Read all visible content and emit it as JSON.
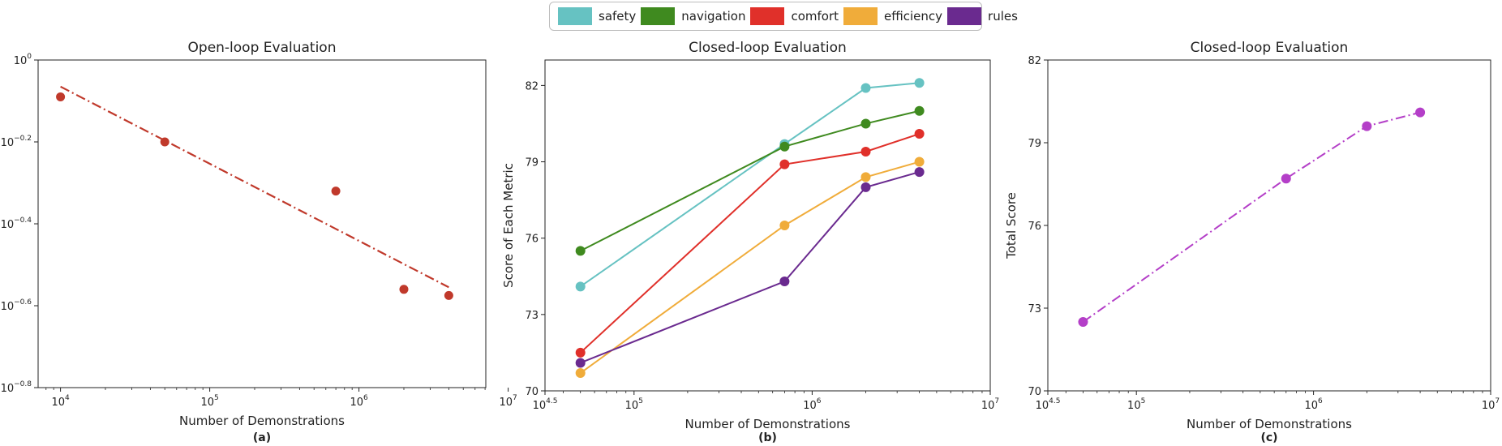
{
  "legend": [
    {
      "label": "safety",
      "color": "#66c2c2"
    },
    {
      "label": "navigation",
      "color": "#3f8a1f"
    },
    {
      "label": "comfort",
      "color": "#e0302a"
    },
    {
      "label": "efficiency",
      "color": "#f0ac3a"
    },
    {
      "label": "rules",
      "color": "#6a2a8f"
    }
  ],
  "chart_data": [
    {
      "type": "scatter",
      "title": "Open-loop Evaluation",
      "xlabel": "Number of Demonstrations",
      "ylabel": "",
      "caption": "(a)",
      "xscale": "log",
      "yscale": "log",
      "xlim_log10": [
        3.85,
        6.85
      ],
      "ylim_log10": [
        -0.8,
        0.0
      ],
      "x_ticks": [
        {
          "base": "10",
          "exp": "4"
        },
        {
          "base": "10",
          "exp": "5"
        },
        {
          "base": "10",
          "exp": "6"
        },
        {
          "base": "10",
          "exp": "7"
        }
      ],
      "y_ticks": [
        {
          "base": "10",
          "exp": "0"
        },
        {
          "base": "10",
          "exp": "−0.2"
        },
        {
          "base": "10",
          "exp": "−0.4"
        },
        {
          "base": "10",
          "exp": "−0.6"
        },
        {
          "base": "10",
          "exp": "−0.8"
        }
      ],
      "points": [
        {
          "x": 10000,
          "y_log10": -0.09
        },
        {
          "x": 50000,
          "y_log10": -0.2
        },
        {
          "x": 700000,
          "y_log10": -0.32
        },
        {
          "x": 2000000,
          "y_log10": -0.56
        },
        {
          "x": 4000000,
          "y_log10": -0.575
        }
      ],
      "trend_line": {
        "from": {
          "x": 10000,
          "y_log10": -0.065
        },
        "to": {
          "x": 4000000,
          "y_log10": -0.555
        }
      },
      "color": "#c0392b"
    },
    {
      "type": "line",
      "title": "Closed-loop Evaluation",
      "xlabel": "Number of Demonstrations",
      "ylabel": "Score of Each Metric",
      "caption": "(b)",
      "xscale": "log",
      "xlim_log10": [
        4.5,
        7.0
      ],
      "ylim": [
        70,
        83
      ],
      "x_ticks": [
        {
          "base": "10",
          "exp": "4.5"
        },
        {
          "base": "10",
          "exp": "5"
        },
        {
          "base": "10",
          "exp": "6"
        },
        {
          "base": "10",
          "exp": "7"
        }
      ],
      "y_ticks": [
        70,
        73,
        76,
        79,
        82
      ],
      "x": [
        50000,
        700000,
        2000000,
        4000000
      ],
      "series": [
        {
          "name": "safety",
          "values": [
            74.1,
            79.7,
            81.9,
            82.1
          ]
        },
        {
          "name": "navigation",
          "values": [
            75.5,
            79.6,
            80.5,
            81.0
          ]
        },
        {
          "name": "comfort",
          "values": [
            71.5,
            78.9,
            79.4,
            80.1
          ]
        },
        {
          "name": "efficiency",
          "values": [
            70.7,
            76.5,
            78.4,
            79.0
          ]
        },
        {
          "name": "rules",
          "values": [
            71.1,
            74.3,
            78.0,
            78.6
          ]
        }
      ]
    },
    {
      "type": "line",
      "title": "Closed-loop Evaluation",
      "xlabel": "Number of Demonstrations",
      "ylabel": "Total Score",
      "caption": "(c)",
      "xscale": "log",
      "xlim_log10": [
        4.5,
        7.0
      ],
      "ylim": [
        70,
        82
      ],
      "x_ticks": [
        {
          "base": "10",
          "exp": "4.5"
        },
        {
          "base": "10",
          "exp": "5"
        },
        {
          "base": "10",
          "exp": "6"
        },
        {
          "base": "10",
          "exp": "7"
        }
      ],
      "y_ticks": [
        70,
        73,
        76,
        79,
        82
      ],
      "x": [
        50000,
        700000,
        2000000,
        4000000
      ],
      "series": [
        {
          "values": [
            72.5,
            77.7,
            79.6,
            80.1
          ]
        }
      ],
      "color": "#b43fc8"
    }
  ]
}
